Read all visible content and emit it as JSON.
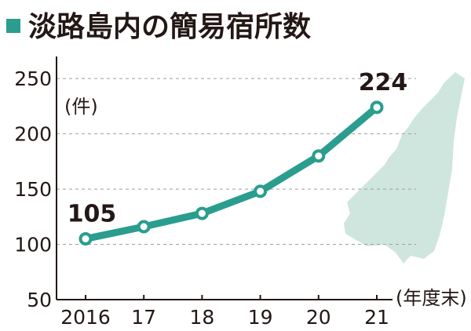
{
  "title": "淡路島内の簡易宿所数",
  "colors": {
    "accent": "#2a9d8f",
    "island": "#cfe6df",
    "text": "#231815",
    "grid": "#9e9e9e"
  },
  "chart_data": {
    "type": "line",
    "title": "淡路島内の簡易宿所数",
    "x_unit": "(年度末)",
    "y_unit": "(件)",
    "categories": [
      "2016",
      "17",
      "18",
      "19",
      "20",
      "21"
    ],
    "series": [
      {
        "values": [
          105,
          116,
          128,
          148,
          180,
          224
        ]
      }
    ],
    "data_labels": [
      {
        "index": 0,
        "text": "105"
      },
      {
        "index": 5,
        "text": "224"
      }
    ],
    "yticks": [
      50,
      100,
      150,
      200,
      250
    ],
    "ylim": [
      50,
      270
    ],
    "grid": true,
    "legend": "none"
  }
}
